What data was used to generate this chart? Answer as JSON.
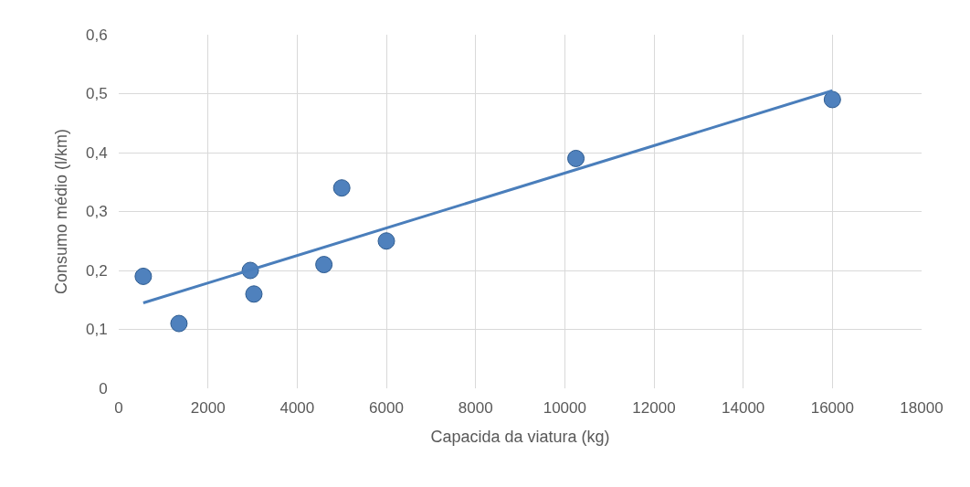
{
  "chart_data": {
    "type": "scatter",
    "xlabel": "Capacida da viatura (kg)",
    "ylabel": "Consumo médio (l/km)",
    "series": [
      {
        "color": "#4f81bd",
        "marker": "circle",
        "x": [
          550,
          1350,
          2950,
          3030,
          4600,
          5000,
          6000,
          10250,
          16000
        ],
        "values": [
          0.19,
          0.11,
          0.2,
          0.16,
          0.21,
          0.34,
          0.25,
          0.39,
          0.49
        ]
      },
      {
        "type": "line",
        "color": "#4a7ebb",
        "marker": "none",
        "x": [
          550,
          16000
        ],
        "values": [
          0.145,
          0.505
        ]
      }
    ],
    "xlim": [
      0,
      18000
    ],
    "xticks": [
      0,
      2000,
      4000,
      6000,
      8000,
      10000,
      12000,
      14000,
      16000,
      18000
    ],
    "ylim": [
      0,
      0.6
    ],
    "yticks": [
      {
        "value": 0,
        "label": "0"
      },
      {
        "value": 0.1,
        "label": "0,1"
      },
      {
        "value": 0.2,
        "label": "0,2"
      },
      {
        "value": 0.3,
        "label": "0,3"
      },
      {
        "value": 0.4,
        "label": "0,4"
      },
      {
        "value": 0.5,
        "label": "0,5"
      },
      {
        "value": 0.6,
        "label": "0,6"
      }
    ],
    "grid": true,
    "legend": false
  }
}
